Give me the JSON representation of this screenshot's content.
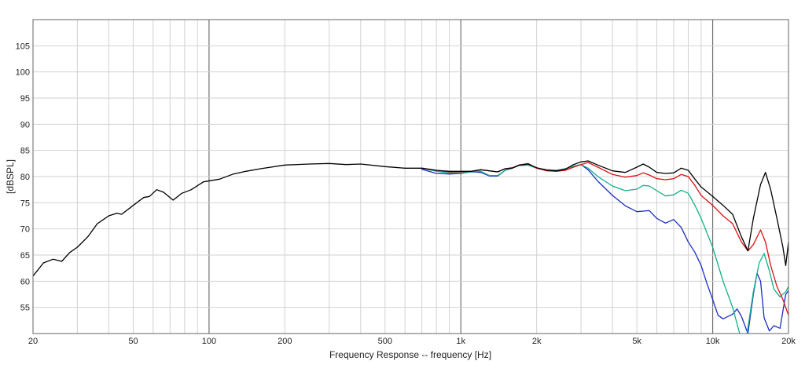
{
  "chart_data": {
    "type": "line",
    "xlabel": "Frequency Response -- frequency [Hz]",
    "ylabel": "[dBSPL]",
    "x_scale": "log",
    "xlim": [
      20,
      20000
    ],
    "ylim": [
      50,
      110
    ],
    "grid": true,
    "x_tick_labels": [
      {
        "value": 20,
        "label": "20"
      },
      {
        "value": 50,
        "label": "50"
      },
      {
        "value": 100,
        "label": "100"
      },
      {
        "value": 200,
        "label": "200"
      },
      {
        "value": 500,
        "label": "500"
      },
      {
        "value": 1000,
        "label": "1k"
      },
      {
        "value": 2000,
        "label": "2k"
      },
      {
        "value": 5000,
        "label": "5k"
      },
      {
        "value": 10000,
        "label": "10k"
      },
      {
        "value": 20000,
        "label": "20k"
      }
    ],
    "y_ticks": [
      55,
      60,
      65,
      70,
      75,
      80,
      85,
      90,
      95,
      100,
      105
    ],
    "series": [
      {
        "color": "#000000",
        "points": [
          [
            20,
            61
          ],
          [
            22,
            63.5
          ],
          [
            24,
            64.2
          ],
          [
            26,
            63.8
          ],
          [
            28,
            65.5
          ],
          [
            30,
            66.5
          ],
          [
            33,
            68.5
          ],
          [
            36,
            71
          ],
          [
            40,
            72.5
          ],
          [
            43,
            73
          ],
          [
            45,
            72.8
          ],
          [
            50,
            74.5
          ],
          [
            55,
            76
          ],
          [
            58,
            76.2
          ],
          [
            62,
            77.5
          ],
          [
            66,
            77
          ],
          [
            72,
            75.5
          ],
          [
            78,
            76.8
          ],
          [
            85,
            77.5
          ],
          [
            95,
            79
          ],
          [
            110,
            79.5
          ],
          [
            125,
            80.5
          ],
          [
            140,
            81
          ],
          [
            160,
            81.5
          ],
          [
            200,
            82.2
          ],
          [
            250,
            82.4
          ],
          [
            300,
            82.5
          ],
          [
            350,
            82.3
          ],
          [
            400,
            82.4
          ],
          [
            500,
            81.9
          ],
          [
            600,
            81.6
          ],
          [
            700,
            81.6
          ],
          [
            800,
            81.2
          ],
          [
            900,
            81
          ],
          [
            1000,
            81
          ],
          [
            1100,
            81
          ],
          [
            1200,
            81.3
          ],
          [
            1400,
            80.9
          ],
          [
            1500,
            81.5
          ],
          [
            1600,
            81.6
          ],
          [
            1700,
            82.2
          ],
          [
            1850,
            82.4
          ],
          [
            2000,
            81.7
          ],
          [
            2200,
            81.2
          ],
          [
            2400,
            81.1
          ],
          [
            2600,
            81.4
          ],
          [
            2800,
            82.3
          ],
          [
            3000,
            82.8
          ],
          [
            3200,
            83
          ],
          [
            3500,
            82.2
          ],
          [
            4000,
            81.1
          ],
          [
            4500,
            80.8
          ],
          [
            5000,
            81.8
          ],
          [
            5300,
            82.4
          ],
          [
            5600,
            81.8
          ],
          [
            6000,
            80.8
          ],
          [
            6500,
            80.6
          ],
          [
            7000,
            80.7
          ],
          [
            7500,
            81.6
          ],
          [
            8000,
            81.2
          ],
          [
            8500,
            79.5
          ],
          [
            9000,
            78
          ],
          [
            10000,
            76.2
          ],
          [
            11000,
            74.5
          ],
          [
            12000,
            72.8
          ],
          [
            13000,
            68.5
          ],
          [
            13800,
            65.8
          ],
          [
            14500,
            72
          ],
          [
            15500,
            78.5
          ],
          [
            16200,
            80.8
          ],
          [
            17000,
            77.5
          ],
          [
            18000,
            72
          ],
          [
            19000,
            66.5
          ],
          [
            19500,
            63
          ],
          [
            20000,
            67.5
          ]
        ]
      },
      {
        "color": "#dd1111",
        "points": [
          [
            700,
            81.6
          ],
          [
            800,
            81.2
          ],
          [
            900,
            80.9
          ],
          [
            1000,
            80.9
          ],
          [
            1100,
            81
          ],
          [
            1200,
            81.3
          ],
          [
            1400,
            80.9
          ],
          [
            1500,
            81.5
          ],
          [
            1600,
            81.7
          ],
          [
            1700,
            82.2
          ],
          [
            1850,
            82.5
          ],
          [
            2000,
            81.6
          ],
          [
            2200,
            81.1
          ],
          [
            2400,
            81
          ],
          [
            2600,
            81.2
          ],
          [
            2800,
            81.8
          ],
          [
            3000,
            82.3
          ],
          [
            3200,
            82.7
          ],
          [
            3500,
            81.8
          ],
          [
            4000,
            80.4
          ],
          [
            4500,
            79.9
          ],
          [
            5000,
            80.2
          ],
          [
            5300,
            80.7
          ],
          [
            5600,
            80.3
          ],
          [
            6000,
            79.6
          ],
          [
            6500,
            79.4
          ],
          [
            7000,
            79.6
          ],
          [
            7500,
            80.4
          ],
          [
            8000,
            80
          ],
          [
            8500,
            78.3
          ],
          [
            9000,
            76.4
          ],
          [
            10000,
            74.5
          ],
          [
            11000,
            72.5
          ],
          [
            12000,
            71
          ],
          [
            13000,
            67.5
          ],
          [
            13800,
            65.8
          ],
          [
            14500,
            67
          ],
          [
            15500,
            69.8
          ],
          [
            16200,
            67.5
          ],
          [
            17000,
            63
          ],
          [
            18000,
            59
          ],
          [
            19000,
            56.5
          ],
          [
            20000,
            53.5
          ]
        ]
      },
      {
        "color": "#11b089",
        "points": [
          [
            700,
            81.6
          ],
          [
            800,
            81
          ],
          [
            900,
            80.7
          ],
          [
            1000,
            80.7
          ],
          [
            1100,
            80.9
          ],
          [
            1200,
            81
          ],
          [
            1300,
            80.2
          ],
          [
            1400,
            80.2
          ],
          [
            1500,
            81.2
          ],
          [
            1600,
            81.6
          ],
          [
            1700,
            82.1
          ],
          [
            1850,
            82.2
          ],
          [
            2000,
            81.6
          ],
          [
            2200,
            81.3
          ],
          [
            2400,
            81.2
          ],
          [
            2600,
            81.5
          ],
          [
            2800,
            82
          ],
          [
            3000,
            82.3
          ],
          [
            3200,
            81.6
          ],
          [
            3500,
            80
          ],
          [
            4000,
            78.2
          ],
          [
            4500,
            77.3
          ],
          [
            5000,
            77.6
          ],
          [
            5300,
            78.3
          ],
          [
            5600,
            78.2
          ],
          [
            6000,
            77.3
          ],
          [
            6500,
            76.3
          ],
          [
            7000,
            76.5
          ],
          [
            7500,
            77.4
          ],
          [
            8000,
            76.8
          ],
          [
            8500,
            74.5
          ],
          [
            9000,
            72
          ],
          [
            10000,
            66.5
          ],
          [
            11000,
            60
          ],
          [
            12000,
            55
          ],
          [
            12800,
            50
          ],
          [
            13500,
            48
          ],
          [
            14500,
            58
          ],
          [
            15300,
            63.5
          ],
          [
            16000,
            65.3
          ],
          [
            16800,
            62
          ],
          [
            17500,
            58.5
          ],
          [
            18500,
            57
          ],
          [
            19500,
            58
          ],
          [
            20000,
            59
          ]
        ]
      },
      {
        "color": "#1a2fc0",
        "points": [
          [
            700,
            81.4
          ],
          [
            800,
            80.6
          ],
          [
            900,
            80.5
          ],
          [
            1000,
            80.6
          ],
          [
            1100,
            80.9
          ],
          [
            1200,
            80.8
          ],
          [
            1300,
            80.1
          ],
          [
            1400,
            80.1
          ],
          [
            1500,
            81.2
          ],
          [
            1600,
            81.6
          ],
          [
            1700,
            82.1
          ],
          [
            1850,
            82.2
          ],
          [
            2000,
            81.6
          ],
          [
            2200,
            81.3
          ],
          [
            2400,
            81.2
          ],
          [
            2600,
            81.5
          ],
          [
            2800,
            82
          ],
          [
            3000,
            82.3
          ],
          [
            3200,
            81.3
          ],
          [
            3500,
            79.1
          ],
          [
            4000,
            76.4
          ],
          [
            4500,
            74.4
          ],
          [
            5000,
            73.3
          ],
          [
            5300,
            73.4
          ],
          [
            5600,
            73.5
          ],
          [
            6000,
            72
          ],
          [
            6500,
            71.1
          ],
          [
            7000,
            71.8
          ],
          [
            7500,
            70.3
          ],
          [
            8000,
            67.5
          ],
          [
            8500,
            65.5
          ],
          [
            9000,
            63
          ],
          [
            9500,
            59.5
          ],
          [
            10000,
            56.5
          ],
          [
            10500,
            53.5
          ],
          [
            11000,
            52.8
          ],
          [
            12000,
            53.7
          ],
          [
            12500,
            54.7
          ],
          [
            13000,
            53.3
          ],
          [
            13800,
            50
          ],
          [
            14500,
            57.5
          ],
          [
            15000,
            61.5
          ],
          [
            15500,
            60
          ],
          [
            16000,
            53
          ],
          [
            16800,
            50.5
          ],
          [
            17500,
            51.5
          ],
          [
            18500,
            51
          ],
          [
            19500,
            57.5
          ],
          [
            20000,
            58.2
          ]
        ]
      }
    ]
  }
}
